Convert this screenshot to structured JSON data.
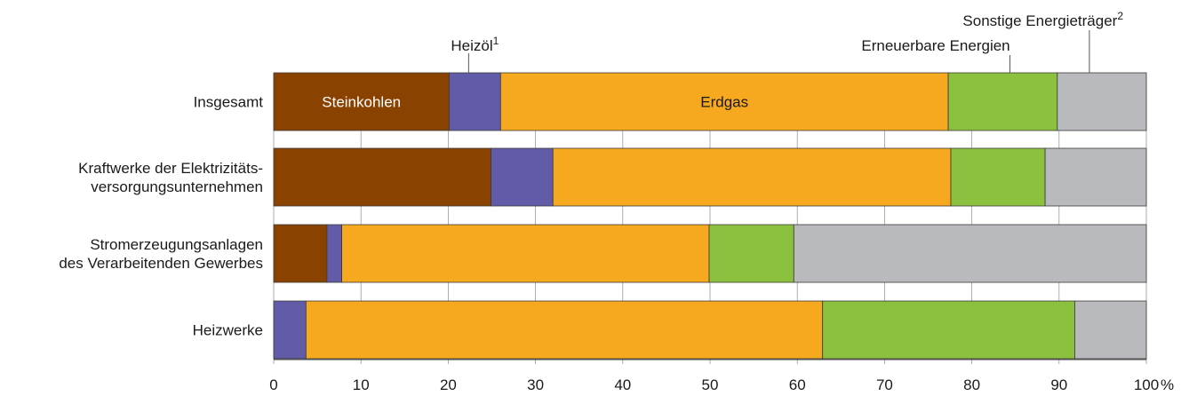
{
  "chart_data": {
    "type": "bar",
    "orientation": "horizontal",
    "stacked": true,
    "xlim": [
      0,
      100
    ],
    "x_unit": "%",
    "x_ticks": [
      "0",
      "10",
      "20",
      "30",
      "40",
      "50",
      "60",
      "70",
      "80",
      "90",
      "100"
    ],
    "grid": "vertical",
    "categories": [
      [
        "Insgesamt"
      ],
      [
        "Kraftwerke der Elektrizitäts-",
        "versorgungsunternehmen"
      ],
      [
        "Stromerzeugungsanlagen",
        "des Verarbeitenden Gewerbes"
      ],
      [
        "Heizwerke"
      ]
    ],
    "series": [
      {
        "name": "Steinkohlen",
        "color": "#8a4200",
        "values": [
          20.1,
          24.9,
          6.1,
          0
        ]
      },
      {
        "name": "Heizöl",
        "sup": "1",
        "color": "#625ca8",
        "values": [
          5.9,
          7.1,
          1.7,
          3.7
        ]
      },
      {
        "name": "Erdgas",
        "color": "#f6a81f",
        "values": [
          51.3,
          45.6,
          42.1,
          59.2
        ]
      },
      {
        "name": "Erneuerbare Energien",
        "color": "#8bc13f",
        "values": [
          12.5,
          10.8,
          9.7,
          28.9
        ]
      },
      {
        "name": "Sonstige Energieträger",
        "sup": "2",
        "color": "#b9babd",
        "values": [
          10.2,
          11.6,
          40.4,
          8.2
        ]
      }
    ]
  }
}
